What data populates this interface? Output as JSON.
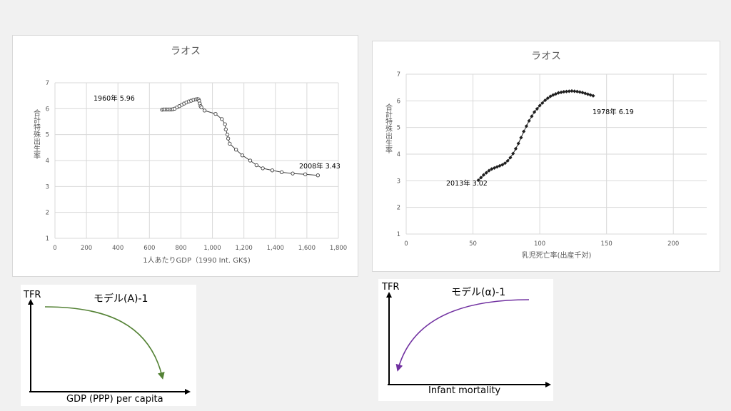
{
  "chart_data": [
    {
      "type": "scatter",
      "title": "ラオス",
      "xlabel": "1人あたりGDP（1990 Int. GK$)",
      "ylabel": "合計特殊出生率",
      "xlim": [
        0,
        1800
      ],
      "ylim": [
        1,
        7
      ],
      "xticks": [
        0,
        200,
        400,
        600,
        800,
        1000,
        1200,
        1400,
        1600,
        1800
      ],
      "xtick_labels": [
        "0",
        "200",
        "400",
        "600",
        "800",
        "1,000",
        "1,200",
        "1,400",
        "1,600",
        "1,800"
      ],
      "yticks": [
        1,
        2,
        3,
        4,
        5,
        6,
        7
      ],
      "ytick_labels": [
        "1",
        "2",
        "3",
        "4",
        "5",
        "6",
        "7"
      ],
      "grid": true,
      "marker": "open-circle",
      "color": "#404040",
      "annotations": [
        "1960年 5.96",
        "2008年 3.43"
      ],
      "x": [
        680,
        690,
        700,
        710,
        720,
        730,
        740,
        750,
        760,
        775,
        790,
        805,
        820,
        835,
        850,
        865,
        880,
        895,
        905,
        912,
        916,
        920,
        925,
        930,
        950,
        1020,
        1060,
        1080,
        1085,
        1095,
        1100,
        1110,
        1150,
        1190,
        1240,
        1280,
        1320,
        1380,
        1440,
        1510,
        1590,
        1670
      ],
      "y": [
        5.96,
        5.97,
        5.97,
        5.97,
        5.97,
        5.97,
        5.97,
        5.98,
        6.0,
        6.05,
        6.1,
        6.15,
        6.2,
        6.24,
        6.28,
        6.31,
        6.34,
        6.36,
        6.37,
        6.36,
        6.3,
        6.2,
        6.1,
        6.05,
        5.93,
        5.8,
        5.6,
        5.4,
        5.2,
        5.0,
        4.85,
        4.65,
        4.42,
        4.2,
        4.0,
        3.82,
        3.7,
        3.62,
        3.55,
        3.5,
        3.47,
        3.43
      ]
    },
    {
      "type": "scatter",
      "title": "ラオス",
      "xlabel": "乳児死亡率(出産千対)",
      "ylabel": "合計特殊出生率",
      "xlim": [
        0,
        225
      ],
      "ylim": [
        1,
        7
      ],
      "xticks": [
        0,
        50,
        100,
        150,
        200
      ],
      "xtick_labels": [
        "0",
        "50",
        "100",
        "150",
        "200"
      ],
      "yticks": [
        1,
        2,
        3,
        4,
        5,
        6,
        7
      ],
      "ytick_labels": [
        "1",
        "2",
        "3",
        "4",
        "5",
        "6",
        "7"
      ],
      "grid": true,
      "marker": "filled-diamond",
      "color": "#1f1f1f",
      "annotations": [
        "1978年 6.19",
        "2013年 3.02"
      ],
      "x": [
        54,
        56,
        58,
        60,
        62,
        64,
        66,
        68,
        70,
        72,
        74,
        76,
        78,
        80,
        82,
        84,
        86,
        88,
        90,
        92,
        94,
        96,
        98,
        100,
        102,
        104,
        106,
        108,
        110,
        112,
        114,
        116,
        118,
        120,
        122,
        124,
        126,
        128,
        130,
        132,
        134,
        136,
        138,
        140
      ],
      "y": [
        3.02,
        3.12,
        3.22,
        3.3,
        3.38,
        3.44,
        3.48,
        3.52,
        3.56,
        3.6,
        3.66,
        3.75,
        3.87,
        4.02,
        4.2,
        4.4,
        4.62,
        4.85,
        5.05,
        5.25,
        5.42,
        5.58,
        5.7,
        5.82,
        5.92,
        6.02,
        6.1,
        6.17,
        6.22,
        6.26,
        6.3,
        6.32,
        6.34,
        6.35,
        6.36,
        6.37,
        6.36,
        6.35,
        6.33,
        6.31,
        6.28,
        6.25,
        6.22,
        6.19
      ]
    }
  ],
  "model_a": {
    "title": "モデル(A)-1",
    "ylabel": "TFR",
    "xlabel": "GDP (PPP) per capita",
    "curve_color": "#548235"
  },
  "model_alpha": {
    "title": "モデル(α)-1",
    "ylabel": "TFR",
    "xlabel": "Infant mortality",
    "curve_color": "#7030a0"
  }
}
